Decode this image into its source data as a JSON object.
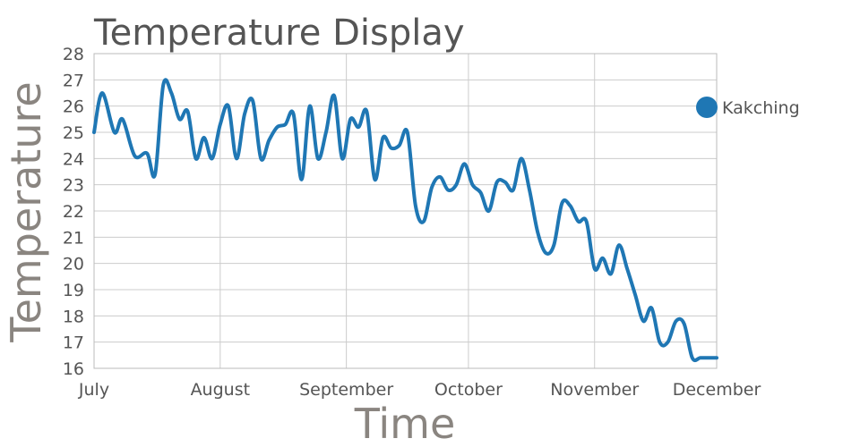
{
  "chart_data": {
    "type": "line",
    "title": "Temperature Display",
    "xlabel": "Time",
    "ylabel": "Temperature",
    "ylim": [
      16,
      28
    ],
    "y_ticks": [
      "16",
      "17",
      "18",
      "19",
      "20",
      "21",
      "22",
      "23",
      "24",
      "25",
      "26",
      "27",
      "28"
    ],
    "x_ticks": [
      "July",
      "August",
      "September",
      "October",
      "November",
      "December"
    ],
    "grid": true,
    "legend_position": "right",
    "series": [
      {
        "name": "Kakching",
        "color": "#1f77b4",
        "x": [
          0,
          2,
          5,
          7,
          10,
          13,
          15,
          17,
          19,
          21,
          23,
          25,
          27,
          29,
          31,
          33,
          35,
          37,
          39,
          41,
          43,
          45,
          47,
          49,
          51,
          53,
          55,
          57,
          59,
          61,
          63,
          65,
          67,
          69,
          71,
          73,
          75,
          77,
          79,
          81,
          83,
          85,
          87,
          89,
          91,
          93,
          95,
          97,
          99,
          101,
          103,
          105,
          107,
          109,
          111,
          113,
          115,
          117,
          119,
          121,
          123,
          125,
          127,
          129,
          131,
          133,
          135,
          137,
          139,
          141,
          143,
          145,
          147,
          149,
          151,
          153
        ],
        "values": [
          25.0,
          26.5,
          25.0,
          25.5,
          24.1,
          24.2,
          23.4,
          26.8,
          26.5,
          25.5,
          25.8,
          24.0,
          24.8,
          24.0,
          25.3,
          26.0,
          24.0,
          25.7,
          26.2,
          24.0,
          24.7,
          25.2,
          25.3,
          25.7,
          23.2,
          26.0,
          24.0,
          25.0,
          26.4,
          24.0,
          25.5,
          25.2,
          25.8,
          23.2,
          24.8,
          24.4,
          24.5,
          25.0,
          22.2,
          21.6,
          22.9,
          23.3,
          22.8,
          23.0,
          23.8,
          23.0,
          22.7,
          22.0,
          23.1,
          23.1,
          22.8,
          24.0,
          22.8,
          21.2,
          20.4,
          20.7,
          22.3,
          22.2,
          21.6,
          21.6,
          19.8,
          20.2,
          19.6,
          20.7,
          19.8,
          18.8,
          17.8,
          18.3,
          17.0,
          17.0,
          17.8,
          17.7,
          16.4,
          16.4,
          16.4,
          16.4
        ]
      }
    ]
  }
}
